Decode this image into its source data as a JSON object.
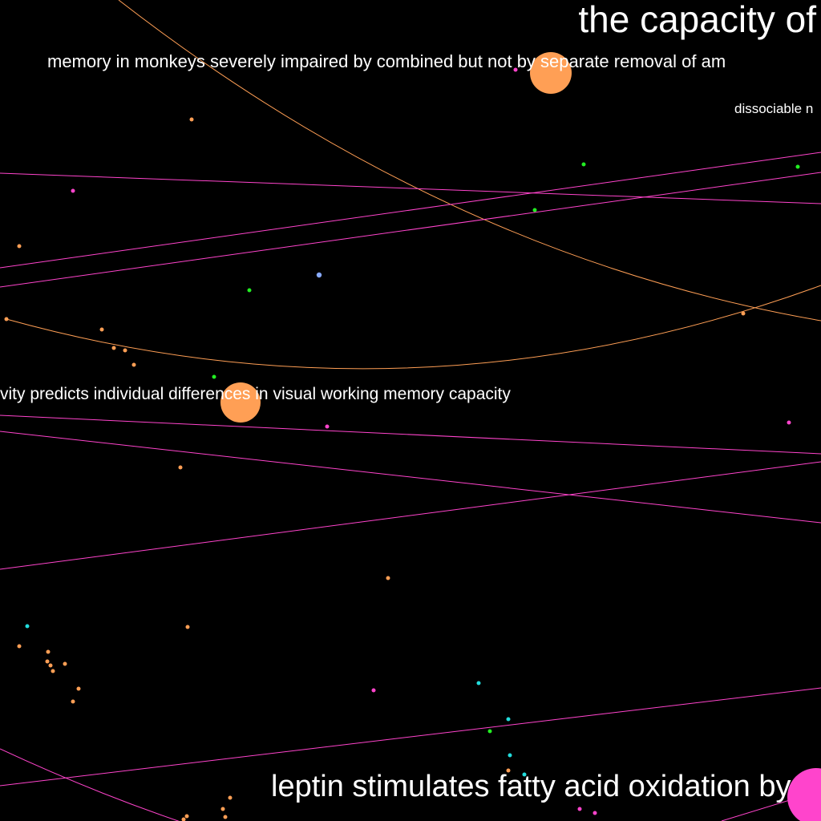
{
  "background": "#000000",
  "labels": {
    "title": "the capacity of",
    "subtitle": "memory in monkeys severely impaired by combined but not by separate removal of am",
    "small": "dissociable n",
    "middle": "vity predicts individual differences in visual working memory capacity",
    "bottom": "leptin stimulates fatty acid oxidation by"
  },
  "colors": {
    "orange": "#ff9f55",
    "magenta": "#ff44cc",
    "green": "#22ee22",
    "cyan": "#22dddd",
    "blue": "#88aaff",
    "white": "#ffffff"
  }
}
